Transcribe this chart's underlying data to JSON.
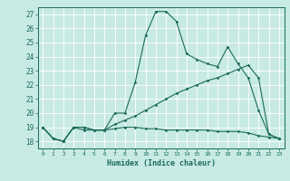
{
  "xlabel": "Humidex (Indice chaleur)",
  "x_ticks": [
    0,
    1,
    2,
    3,
    4,
    5,
    6,
    7,
    8,
    9,
    10,
    11,
    12,
    13,
    14,
    15,
    16,
    17,
    18,
    19,
    20,
    21,
    22,
    23
  ],
  "xlim": [
    -0.5,
    23.5
  ],
  "ylim": [
    17.5,
    27.5
  ],
  "y_ticks": [
    18,
    19,
    20,
    21,
    22,
    23,
    24,
    25,
    26,
    27
  ],
  "bg_color": "#c8eae4",
  "line_color": "#1a6b5a",
  "grid_color": "#ffffff",
  "line1_x": [
    0,
    1,
    2,
    3,
    4,
    5,
    6,
    7,
    8,
    9,
    10,
    11,
    12,
    13,
    14,
    15,
    16,
    17,
    18,
    19,
    20,
    21,
    22,
    23
  ],
  "line1_y": [
    19.0,
    18.2,
    18.0,
    19.0,
    18.8,
    18.8,
    18.8,
    18.9,
    19.0,
    19.0,
    18.9,
    18.9,
    18.8,
    18.8,
    18.8,
    18.8,
    18.8,
    18.7,
    18.7,
    18.7,
    18.6,
    18.4,
    18.3,
    18.2
  ],
  "line2_x": [
    0,
    1,
    2,
    3,
    4,
    5,
    6,
    7,
    8,
    9,
    10,
    11,
    12,
    13,
    14,
    15,
    16,
    17,
    18,
    19,
    20,
    21,
    22,
    23
  ],
  "line2_y": [
    19.0,
    18.2,
    18.0,
    19.0,
    19.0,
    18.8,
    18.8,
    20.0,
    20.0,
    22.2,
    25.5,
    27.2,
    27.2,
    26.5,
    24.2,
    23.8,
    23.5,
    23.3,
    24.7,
    23.5,
    22.5,
    20.2,
    18.5,
    18.2
  ],
  "line3_x": [
    0,
    1,
    2,
    3,
    4,
    5,
    6,
    7,
    8,
    9,
    10,
    11,
    12,
    13,
    14,
    15,
    16,
    17,
    18,
    19,
    20,
    21,
    22,
    23
  ],
  "line3_y": [
    19.0,
    18.2,
    18.0,
    19.0,
    19.0,
    18.8,
    18.8,
    19.2,
    19.5,
    19.8,
    20.2,
    20.6,
    21.0,
    21.4,
    21.7,
    22.0,
    22.3,
    22.5,
    22.8,
    23.1,
    23.4,
    22.5,
    18.5,
    18.2
  ]
}
